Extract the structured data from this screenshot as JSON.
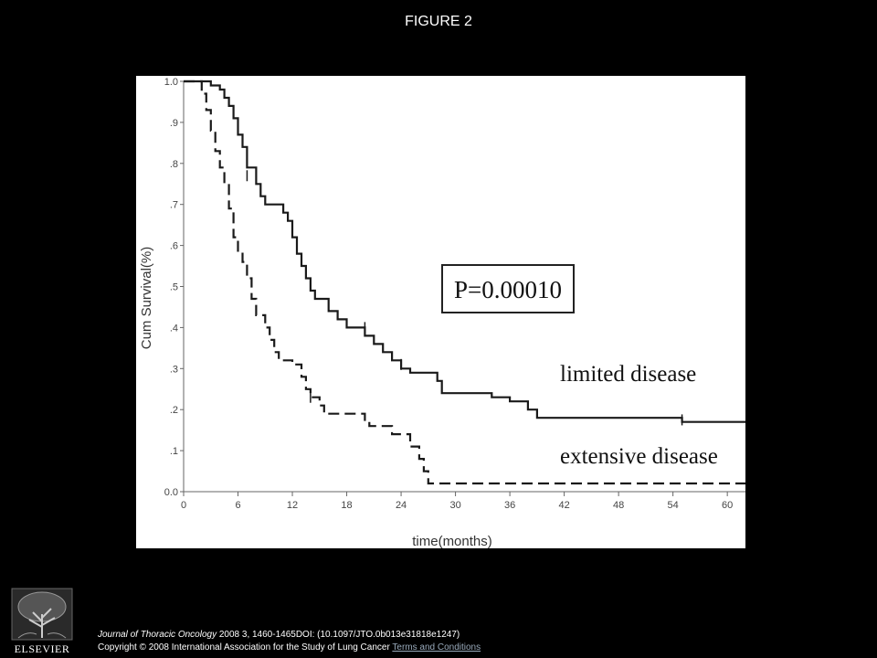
{
  "figure_title": "FIGURE 2",
  "chart_data": {
    "type": "line",
    "xlabel": "time(months)",
    "ylabel": "Cum Survival(%)",
    "xlim": [
      0,
      62
    ],
    "ylim": [
      0,
      1.0
    ],
    "x_ticks": [
      0,
      6,
      12,
      18,
      24,
      30,
      36,
      42,
      48,
      54,
      60
    ],
    "x_tick_labels": [
      "0",
      "6",
      "12",
      "18",
      "24",
      "30",
      "36",
      "42",
      "48",
      "54",
      "60"
    ],
    "y_ticks": [
      0,
      0.1,
      0.2,
      0.3,
      0.4,
      0.5,
      0.6,
      0.7,
      0.8,
      0.9,
      1.0
    ],
    "y_tick_labels": [
      "0.0",
      ".1",
      ".2",
      ".3",
      ".4",
      ".5",
      ".6",
      ".7",
      ".8",
      ".9",
      "1.0"
    ],
    "grid": false,
    "annotation": "P=0.00010",
    "series": [
      {
        "name": "limited disease",
        "style": "solid",
        "points": [
          [
            0,
            1.0
          ],
          [
            3,
            1.0
          ],
          [
            3,
            0.99
          ],
          [
            4,
            0.99
          ],
          [
            4,
            0.98
          ],
          [
            4.5,
            0.98
          ],
          [
            4.5,
            0.96
          ],
          [
            5,
            0.96
          ],
          [
            5,
            0.94
          ],
          [
            5.5,
            0.94
          ],
          [
            5.5,
            0.91
          ],
          [
            6,
            0.91
          ],
          [
            6,
            0.87
          ],
          [
            6.5,
            0.87
          ],
          [
            6.5,
            0.84
          ],
          [
            7,
            0.84
          ],
          [
            7,
            0.79
          ],
          [
            8,
            0.79
          ],
          [
            8,
            0.75
          ],
          [
            8.5,
            0.75
          ],
          [
            8.5,
            0.72
          ],
          [
            9,
            0.72
          ],
          [
            9,
            0.7
          ],
          [
            11,
            0.7
          ],
          [
            11,
            0.68
          ],
          [
            11.5,
            0.68
          ],
          [
            11.5,
            0.66
          ],
          [
            12,
            0.66
          ],
          [
            12,
            0.62
          ],
          [
            12.5,
            0.62
          ],
          [
            12.5,
            0.58
          ],
          [
            13,
            0.58
          ],
          [
            13,
            0.55
          ],
          [
            13.5,
            0.55
          ],
          [
            13.5,
            0.52
          ],
          [
            14,
            0.52
          ],
          [
            14,
            0.49
          ],
          [
            14.5,
            0.49
          ],
          [
            14.5,
            0.47
          ],
          [
            16,
            0.47
          ],
          [
            16,
            0.44
          ],
          [
            17,
            0.44
          ],
          [
            17,
            0.42
          ],
          [
            18,
            0.42
          ],
          [
            18,
            0.4
          ],
          [
            20,
            0.4
          ],
          [
            20,
            0.38
          ],
          [
            21,
            0.38
          ],
          [
            21,
            0.36
          ],
          [
            22,
            0.36
          ],
          [
            22,
            0.34
          ],
          [
            23,
            0.34
          ],
          [
            23,
            0.32
          ],
          [
            24,
            0.32
          ],
          [
            24,
            0.3
          ],
          [
            25,
            0.3
          ],
          [
            25,
            0.29
          ],
          [
            28,
            0.29
          ],
          [
            28,
            0.27
          ],
          [
            28.5,
            0.27
          ],
          [
            28.5,
            0.24
          ],
          [
            34,
            0.24
          ],
          [
            34,
            0.23
          ],
          [
            36,
            0.23
          ],
          [
            36,
            0.22
          ],
          [
            38,
            0.22
          ],
          [
            38,
            0.2
          ],
          [
            39,
            0.2
          ],
          [
            39,
            0.18
          ],
          [
            55,
            0.18
          ],
          [
            55,
            0.17
          ],
          [
            62,
            0.17
          ]
        ],
        "censor_marks": [
          [
            7,
            0.77
          ],
          [
            20,
            0.4
          ],
          [
            24,
            0.31
          ],
          [
            55,
            0.175
          ]
        ]
      },
      {
        "name": "extensive disease",
        "style": "dashed",
        "points": [
          [
            0,
            1.0
          ],
          [
            2,
            1.0
          ],
          [
            2,
            0.97
          ],
          [
            2.5,
            0.97
          ],
          [
            2.5,
            0.93
          ],
          [
            3,
            0.93
          ],
          [
            3,
            0.88
          ],
          [
            3.5,
            0.88
          ],
          [
            3.5,
            0.83
          ],
          [
            4,
            0.83
          ],
          [
            4,
            0.79
          ],
          [
            4.5,
            0.79
          ],
          [
            4.5,
            0.75
          ],
          [
            5,
            0.75
          ],
          [
            5,
            0.69
          ],
          [
            5.5,
            0.69
          ],
          [
            5.5,
            0.62
          ],
          [
            6,
            0.62
          ],
          [
            6,
            0.58
          ],
          [
            6.5,
            0.58
          ],
          [
            6.5,
            0.56
          ],
          [
            7,
            0.56
          ],
          [
            7,
            0.52
          ],
          [
            7.5,
            0.52
          ],
          [
            7.5,
            0.47
          ],
          [
            8,
            0.47
          ],
          [
            8,
            0.43
          ],
          [
            9,
            0.43
          ],
          [
            9,
            0.4
          ],
          [
            9.5,
            0.4
          ],
          [
            9.5,
            0.37
          ],
          [
            10,
            0.37
          ],
          [
            10,
            0.34
          ],
          [
            10.5,
            0.34
          ],
          [
            10.5,
            0.32
          ],
          [
            12,
            0.32
          ],
          [
            12,
            0.31
          ],
          [
            13,
            0.31
          ],
          [
            13,
            0.28
          ],
          [
            13.5,
            0.28
          ],
          [
            13.5,
            0.25
          ],
          [
            14,
            0.25
          ],
          [
            14,
            0.23
          ],
          [
            15,
            0.23
          ],
          [
            15,
            0.21
          ],
          [
            15.5,
            0.21
          ],
          [
            15.5,
            0.19
          ],
          [
            20,
            0.19
          ],
          [
            20,
            0.17
          ],
          [
            20.5,
            0.17
          ],
          [
            20.5,
            0.16
          ],
          [
            23,
            0.16
          ],
          [
            23,
            0.14
          ],
          [
            25,
            0.14
          ],
          [
            25,
            0.11
          ],
          [
            26,
            0.11
          ],
          [
            26,
            0.08
          ],
          [
            26.5,
            0.08
          ],
          [
            26.5,
            0.05
          ],
          [
            27,
            0.05
          ],
          [
            27,
            0.02
          ],
          [
            62,
            0.02
          ]
        ],
        "censor_marks": [
          [
            14,
            0.23
          ]
        ]
      }
    ]
  },
  "footer": {
    "journal": "Journal of Thoracic Oncology",
    "citation": " 2008 3, 1460-1465DOI: (10.1097/JTO.0b013e31818e1247)",
    "copyright": "Copyright © 2008 International Association for the Study of Lung Cancer ",
    "terms_link": "Terms and Conditions"
  },
  "logo": {
    "text": "ELSEVIER",
    "icon": "elsevier-tree-logo"
  }
}
